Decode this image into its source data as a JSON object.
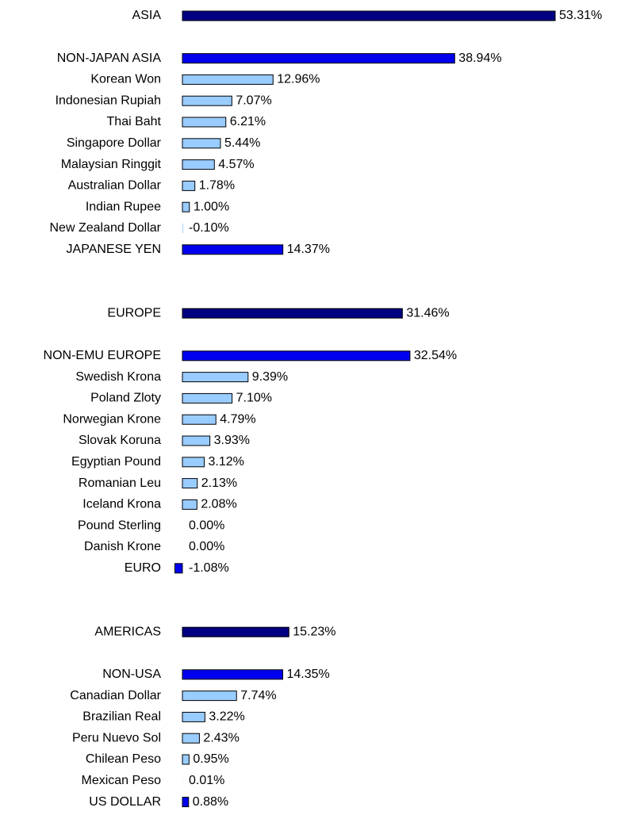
{
  "chart_data": {
    "type": "bar",
    "orientation": "horizontal",
    "categories": [
      "ASIA",
      "NON-JAPAN ASIA",
      "Korean Won",
      "Indonesian Rupiah",
      "Thai Baht",
      "Singapore Dollar",
      "Malaysian Ringgit",
      "Australian Dollar",
      "Indian Rupee",
      "New Zealand Dollar",
      "JAPANESE YEN",
      "EUROPE",
      "NON-EMU EUROPE",
      "Swedish Krona",
      "Poland Zloty",
      "Norwegian Krone",
      "Slovak Koruna",
      "Egyptian Pound",
      "Romanian Leu",
      "Iceland Krona",
      "Pound Sterling",
      "Danish Krone",
      "EURO",
      "AMERICAS",
      "NON-USA",
      "Canadian Dollar",
      "Brazilian Real",
      "Peru Nuevo Sol",
      "Chilean Peso",
      "Mexican Peso",
      "US DOLLAR"
    ],
    "values": [
      53.31,
      38.94,
      12.96,
      7.07,
      6.21,
      5.44,
      4.57,
      1.78,
      1.0,
      -0.1,
      14.37,
      31.46,
      32.54,
      9.39,
      7.1,
      4.79,
      3.93,
      3.12,
      2.13,
      2.08,
      0.0,
      0.0,
      -1.08,
      15.23,
      14.35,
      7.74,
      3.22,
      2.43,
      0.95,
      0.01,
      0.88
    ],
    "value_labels": [
      "53.31%",
      "38.94%",
      "12.96%",
      "7.07%",
      "6.21%",
      "5.44%",
      "4.57%",
      "1.78%",
      "1.00%",
      "-0.10%",
      "14.37%",
      "31.46%",
      "32.54%",
      "9.39%",
      "7.10%",
      "4.79%",
      "3.93%",
      "3.12%",
      "2.13%",
      "2.08%",
      "0.00%",
      "0.00%",
      "-1.08%",
      "15.23%",
      "14.35%",
      "7.74%",
      "3.22%",
      "2.43%",
      "0.95%",
      "0.01%",
      "0.88%"
    ],
    "colors": [
      "#000080",
      "#0000ee",
      "#99ccff",
      "#99ccff",
      "#99ccff",
      "#99ccff",
      "#99ccff",
      "#99ccff",
      "#99ccff",
      "#99ccff",
      "#0000ee",
      "#000080",
      "#0000ee",
      "#99ccff",
      "#99ccff",
      "#99ccff",
      "#99ccff",
      "#99ccff",
      "#99ccff",
      "#99ccff",
      "#99ccff",
      "#99ccff",
      "#0000ee",
      "#000080",
      "#0000ee",
      "#99ccff",
      "#99ccff",
      "#99ccff",
      "#99ccff",
      "#99ccff",
      "#0000ee"
    ]
  }
}
